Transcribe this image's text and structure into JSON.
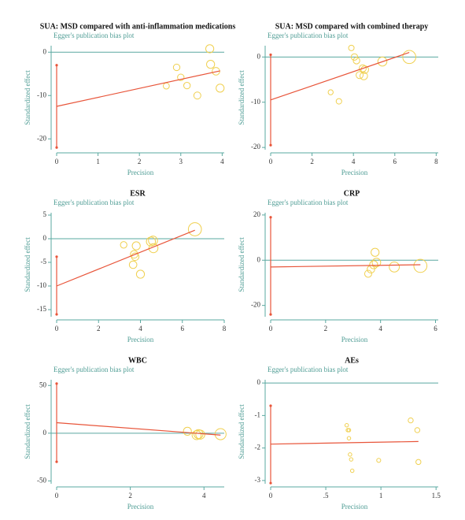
{
  "chart_data": [
    {
      "type": "scatter",
      "title": "SUA: MSD compared with anti-inflammation medications",
      "subtitle": "Egger's publication bias plot",
      "xlabel": "Precision",
      "ylabel": "Standardized effect",
      "xlim": [
        0,
        4.05
      ],
      "ylim": [
        -22.5,
        1.5
      ],
      "xticks": [
        0,
        1,
        2,
        3,
        4
      ],
      "yticks": [
        -20,
        -10,
        0
      ],
      "x": [
        2.65,
        2.9,
        3.0,
        3.15,
        3.4,
        3.7,
        3.72,
        3.85,
        3.95
      ],
      "values": [
        -7.8,
        -3.5,
        -5.8,
        -7.7,
        -10,
        0.8,
        -2.8,
        -4.4,
        -8.3
      ],
      "sizes": [
        1.2,
        1.3,
        1.3,
        1.3,
        1.4,
        1.6,
        1.6,
        1.5,
        1.6
      ],
      "fit": {
        "x": [
          0,
          3.95
        ],
        "values": [
          -12.5,
          -4.3
        ]
      },
      "intercept_ci": [
        -3,
        -22
      ],
      "ref_y": 0,
      "color": "#f0d050",
      "line_color": "#e8553a",
      "axis_color": "#5aa8a0"
    },
    {
      "type": "scatter",
      "title": "SUA: MSD compared with combined therapy",
      "subtitle": "Egger's publication bias plot",
      "xlabel": "Precision",
      "ylabel": "Standardized effect",
      "xlim": [
        0,
        8.1
      ],
      "ylim": [
        -20.5,
        2.5
      ],
      "xticks": [
        0,
        2,
        4,
        6,
        8
      ],
      "yticks": [
        -20,
        -10,
        0
      ],
      "x": [
        2.9,
        3.3,
        3.9,
        4.05,
        4.15,
        4.3,
        4.45,
        4.5,
        4.55,
        5.4,
        6.7
      ],
      "values": [
        -7.8,
        -9.8,
        2,
        0,
        -0.8,
        -4,
        -2.5,
        -4.2,
        -2.8,
        -1,
        0
      ],
      "sizes": [
        1,
        1.1,
        1.1,
        1.3,
        1.3,
        1.4,
        1.4,
        1.5,
        1.5,
        1.8,
        2.6
      ],
      "fit": {
        "x": [
          0,
          6.7
        ],
        "values": [
          -9.5,
          1
        ]
      },
      "intercept_ci": [
        0.5,
        -19.5
      ],
      "ref_y": 0,
      "color": "#f0d050",
      "line_color": "#e8553a",
      "axis_color": "#5aa8a0"
    },
    {
      "type": "scatter",
      "title": "ESR",
      "subtitle": "Egger's publication bias plot",
      "xlabel": "Precision",
      "ylabel": "Standardized effect",
      "xlim": [
        0,
        8
      ],
      "ylim": [
        -16.5,
        5.5
      ],
      "xticks": [
        0,
        2,
        4,
        6,
        8
      ],
      "yticks": [
        -15,
        -10,
        -5,
        0,
        5
      ],
      "x": [
        3.2,
        3.65,
        3.7,
        3.75,
        3.8,
        4.0,
        4.5,
        4.6,
        4.62,
        6.6
      ],
      "values": [
        -1.3,
        -5.5,
        -3.3,
        -3.8,
        -1.5,
        -7.5,
        -0.6,
        -0.4,
        -2,
        2
      ],
      "sizes": [
        1.3,
        1.5,
        1.5,
        1.5,
        1.6,
        1.6,
        1.8,
        1.8,
        1.8,
        2.6
      ],
      "fit": {
        "x": [
          0,
          6.6
        ],
        "values": [
          -10,
          1.8
        ]
      },
      "intercept_ci": [
        -3.8,
        -16
      ],
      "ref_y": 0,
      "color": "#f0d050",
      "line_color": "#e8553a",
      "axis_color": "#5aa8a0"
    },
    {
      "type": "scatter",
      "title": "CRP",
      "subtitle": "Egger's publication bias plot",
      "xlabel": "Precision",
      "ylabel": "Standardized effect",
      "xlim": [
        0,
        6.1
      ],
      "ylim": [
        -25,
        21
      ],
      "xticks": [
        0,
        2,
        4,
        6
      ],
      "yticks": [
        -20,
        0,
        20
      ],
      "x": [
        3.55,
        3.65,
        3.75,
        3.8,
        3.85,
        4.5,
        5.45
      ],
      "values": [
        -6,
        -4,
        -2,
        3.5,
        -1,
        -3,
        -2.5
      ],
      "sizes": [
        1.4,
        1.5,
        1.6,
        1.6,
        1.7,
        2,
        2.6
      ],
      "fit": {
        "x": [
          0,
          5.45
        ],
        "values": [
          -3,
          -2
        ]
      },
      "intercept_ci": [
        19,
        -24
      ],
      "ref_y": 0,
      "color": "#f0d050",
      "line_color": "#e8553a",
      "axis_color": "#5aa8a0"
    },
    {
      "type": "scatter",
      "title": "WBC",
      "subtitle": "Egger's publication bias plot",
      "xlabel": "Precision",
      "ylabel": "Standardized effect",
      "xlim": [
        0,
        4.55
      ],
      "ylim": [
        -53,
        56
      ],
      "xticks": [
        0,
        2,
        4
      ],
      "yticks": [
        -50,
        0,
        50
      ],
      "x": [
        3.55,
        3.8,
        3.85,
        3.9,
        4.45
      ],
      "values": [
        2,
        -2,
        -1,
        -1.5,
        -1
      ],
      "sizes": [
        1.6,
        1.8,
        1.8,
        1.8,
        2.2
      ],
      "fit": {
        "x": [
          0,
          4.45
        ],
        "values": [
          11,
          -2
        ]
      },
      "intercept_ci": [
        52,
        -30
      ],
      "ref_y": 0,
      "color": "#f0d050",
      "line_color": "#e8553a",
      "axis_color": "#5aa8a0"
    },
    {
      "type": "scatter",
      "title": "AEs",
      "subtitle": "Egger's publication bias plot",
      "xlabel": "Precision",
      "ylabel": "Standardized effect",
      "xlim": [
        0,
        1.52
      ],
      "ylim": [
        -3.1,
        0.1
      ],
      "xticks": [
        0,
        {
          "value": 0.5,
          "label": ".5"
        },
        1,
        1.5
      ],
      "yticks": [
        -3,
        -2,
        -1,
        0
      ],
      "x": [
        0.69,
        0.7,
        0.71,
        0.71,
        0.72,
        0.73,
        0.74,
        0.98,
        1.27,
        1.33,
        1.34
      ],
      "values": [
        -1.3,
        -1.45,
        -1.45,
        -1.7,
        -2.2,
        -2.35,
        -2.7,
        -2.38,
        -1.15,
        -1.45,
        -2.43
      ],
      "sizes": [
        0.7,
        0.7,
        0.7,
        0.7,
        0.7,
        0.7,
        0.7,
        0.8,
        1,
        1,
        1
      ],
      "fit": {
        "x": [
          0,
          1.34
        ],
        "values": [
          -1.88,
          -1.8
        ]
      },
      "intercept_ci": [
        -0.7,
        -3.08
      ],
      "ref_y": 0,
      "color": "#f0d050",
      "line_color": "#e8553a",
      "axis_color": "#5aa8a0"
    }
  ]
}
